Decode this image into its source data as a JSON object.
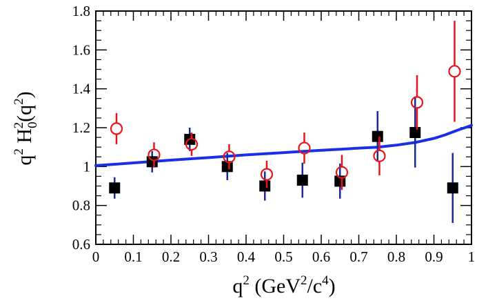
{
  "chart_data": {
    "type": "scatter",
    "title": "",
    "xlabel": {
      "base": "q",
      "exp1": "2",
      "paren_open": " (GeV",
      "exp2": "2",
      "mid": "/c",
      "exp3": "4",
      "paren_close": ")"
    },
    "ylabel": {
      "base": "q",
      "exp1": "2",
      "mid": " H",
      "sub": "0",
      "exp2": "2",
      "paren_open": "(q",
      "exp3": "2",
      "paren_close": ")"
    },
    "xlim": [
      0,
      1
    ],
    "ylim": [
      0.6,
      1.8
    ],
    "xticks": [
      0,
      0.1,
      0.2,
      0.3,
      0.4,
      0.5,
      0.6,
      0.7,
      0.8,
      0.9,
      1
    ],
    "xtick_labels": [
      "0",
      "0.1",
      "0.2",
      "0.3",
      "0.4",
      "0.5",
      "0.6",
      "0.7",
      "0.8",
      "0.9",
      "1"
    ],
    "yticks": [
      0.6,
      0.8,
      1.0,
      1.2,
      1.4,
      1.6,
      1.8
    ],
    "ytick_labels": [
      "0.6",
      "0.8",
      "1",
      "1.2",
      "1.4",
      "1.6",
      "1.8"
    ],
    "grid": false,
    "series": [
      {
        "name": "filled squares",
        "marker": "square",
        "color": "#000000",
        "error_color": "#1a2a9a",
        "points": [
          {
            "x": 0.05,
            "y": 0.89,
            "err": 0.055
          },
          {
            "x": 0.15,
            "y": 1.025,
            "err": 0.055
          },
          {
            "x": 0.25,
            "y": 1.14,
            "err": 0.06
          },
          {
            "x": 0.35,
            "y": 1.0,
            "err": 0.07
          },
          {
            "x": 0.45,
            "y": 0.9,
            "err": 0.075
          },
          {
            "x": 0.55,
            "y": 0.93,
            "err": 0.09
          },
          {
            "x": 0.65,
            "y": 0.925,
            "err": 0.09
          },
          {
            "x": 0.75,
            "y": 1.155,
            "err": 0.13
          },
          {
            "x": 0.85,
            "y": 1.175,
            "err": 0.18
          },
          {
            "x": 0.95,
            "y": 0.89,
            "err": 0.18
          }
        ]
      },
      {
        "name": "open circles",
        "marker": "circle",
        "color": "#e8141a",
        "error_color": "#e8141a",
        "points": [
          {
            "x": 0.055,
            "y": 1.195,
            "err": 0.08
          },
          {
            "x": 0.155,
            "y": 1.06,
            "err": 0.065
          },
          {
            "x": 0.255,
            "y": 1.115,
            "err": 0.06
          },
          {
            "x": 0.355,
            "y": 1.05,
            "err": 0.065
          },
          {
            "x": 0.455,
            "y": 0.96,
            "err": 0.07
          },
          {
            "x": 0.555,
            "y": 1.095,
            "err": 0.08
          },
          {
            "x": 0.655,
            "y": 0.97,
            "err": 0.09
          },
          {
            "x": 0.755,
            "y": 1.055,
            "err": 0.1
          },
          {
            "x": 0.855,
            "y": 1.33,
            "err": 0.14
          },
          {
            "x": 0.955,
            "y": 1.49,
            "err": 0.26
          }
        ]
      }
    ],
    "curve": {
      "name": "model curve",
      "color": "#1a2ee6",
      "x": [
        0,
        0.05,
        0.1,
        0.15,
        0.2,
        0.25,
        0.3,
        0.35,
        0.4,
        0.45,
        0.5,
        0.55,
        0.6,
        0.65,
        0.7,
        0.75,
        0.8,
        0.85,
        0.9,
        0.93,
        0.95,
        0.97,
        0.99,
        1.0
      ],
      "y": [
        1.005,
        1.012,
        1.019,
        1.026,
        1.033,
        1.04,
        1.046,
        1.053,
        1.06,
        1.066,
        1.072,
        1.078,
        1.084,
        1.089,
        1.095,
        1.1,
        1.11,
        1.124,
        1.145,
        1.163,
        1.178,
        1.192,
        1.205,
        1.212
      ]
    }
  }
}
